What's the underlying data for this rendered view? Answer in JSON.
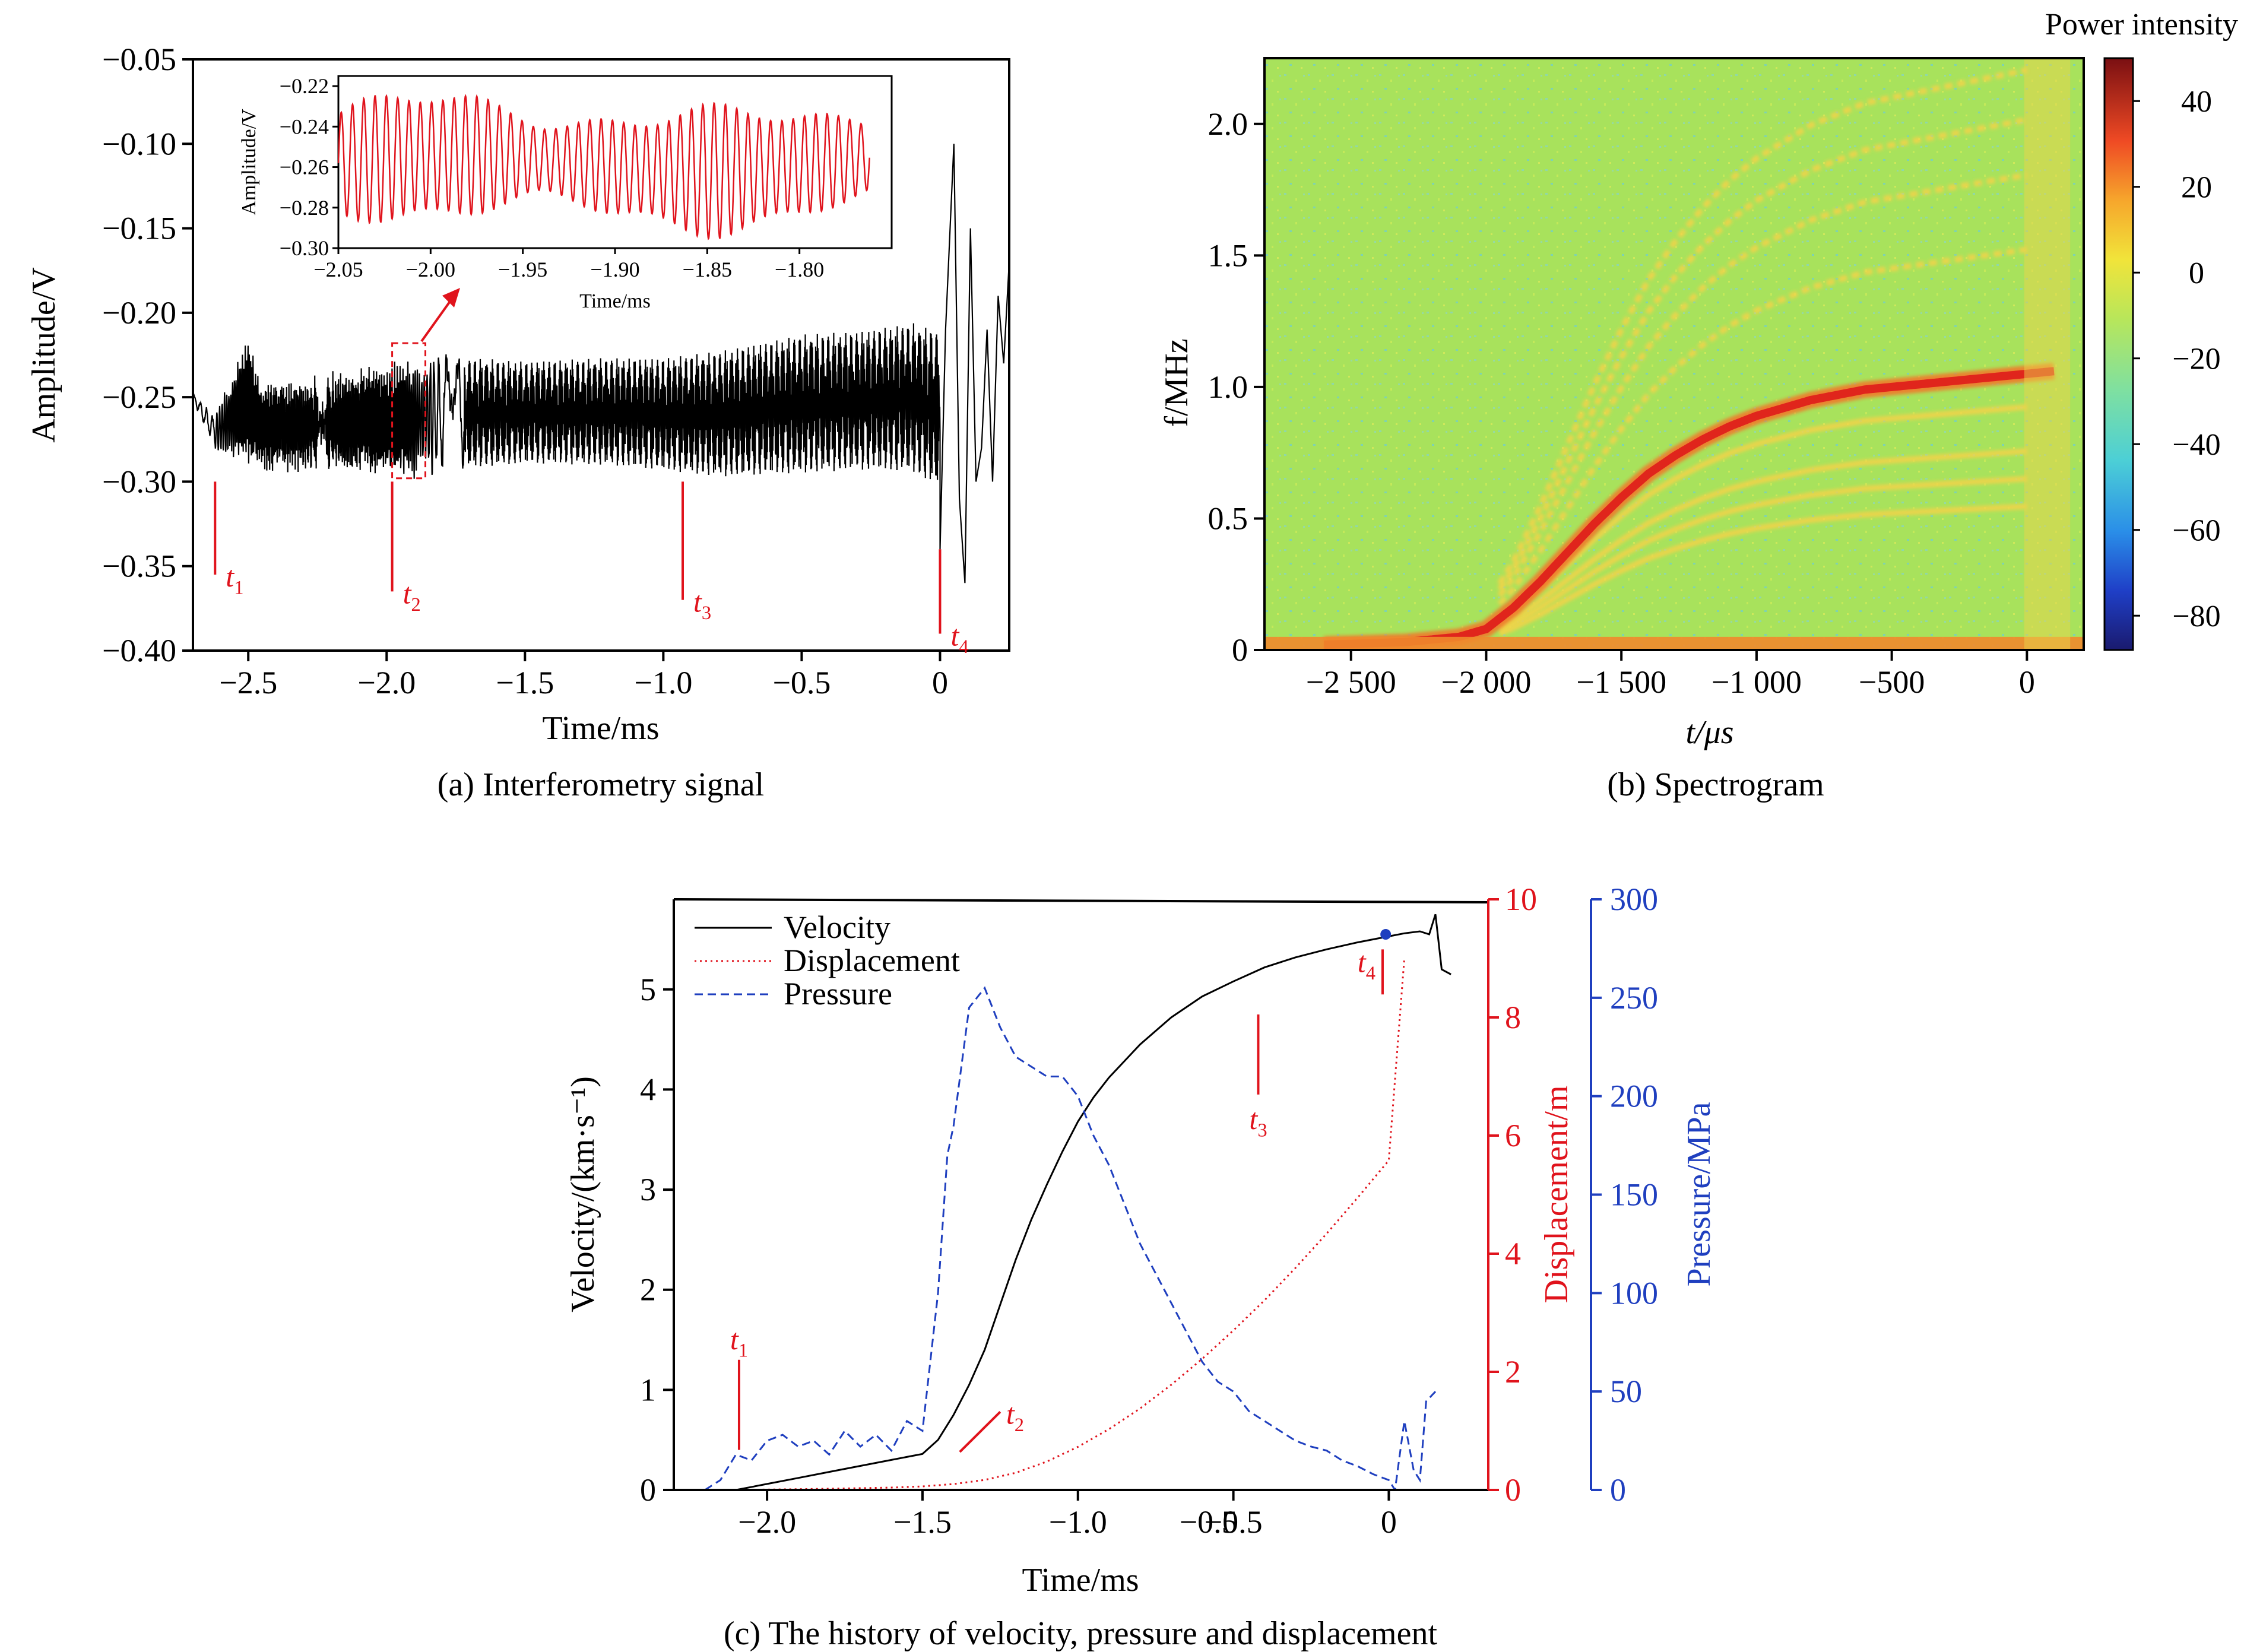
{
  "chart_data": [
    {
      "id": "a",
      "type": "line",
      "caption": "(a) Interferometry signal",
      "xlabel": "Time/ms",
      "ylabel": "Amplitude/V",
      "xlim": [
        -2.7,
        0.25
      ],
      "ylim": [
        -0.4,
        -0.05
      ],
      "xticks": [
        -2.5,
        -2.0,
        -1.5,
        -1.0,
        -0.5,
        0
      ],
      "xtick_labels": [
        "−2.5",
        "−2.0",
        "−1.5",
        "−1.0",
        "−0.5",
        "0"
      ],
      "yticks": [
        -0.4,
        -0.35,
        -0.3,
        -0.25,
        -0.2,
        -0.15,
        -0.1,
        -0.05
      ],
      "ytick_labels": [
        "−0.40",
        "−0.35",
        "−0.30",
        "−0.25",
        "−0.20",
        "−0.15",
        "−0.10",
        "−0.05"
      ],
      "series": [
        {
          "color": "#000000",
          "envelope": {
            "x": [
              -2.7,
              -2.62,
              -2.55,
              -2.5,
              -2.45,
              -2.3,
              -2.1,
              -2.0,
              -1.9,
              -1.8,
              -1.5,
              -1.2,
              -1.0,
              -0.8,
              -0.5,
              -0.3,
              -0.1,
              0.0
            ],
            "upper": [
              -0.248,
              -0.262,
              -0.235,
              -0.215,
              -0.245,
              -0.24,
              -0.235,
              -0.232,
              -0.23,
              -0.225,
              -0.228,
              -0.226,
              -0.226,
              -0.222,
              -0.212,
              -0.21,
              -0.205,
              -0.21
            ],
            "lower": [
              -0.252,
              -0.28,
              -0.285,
              -0.288,
              -0.292,
              -0.292,
              -0.295,
              -0.295,
              -0.296,
              -0.294,
              -0.29,
              -0.291,
              -0.294,
              -0.298,
              -0.296,
              -0.294,
              -0.295,
              -0.305
            ]
          },
          "tail": {
            "x": [
              0.0,
              0.02,
              0.05,
              0.07,
              0.09,
              0.11,
              0.13,
              0.15,
              0.17,
              0.19,
              0.21,
              0.23,
              0.25
            ],
            "y": [
              -0.34,
              -0.21,
              -0.1,
              -0.31,
              -0.36,
              -0.15,
              -0.3,
              -0.28,
              -0.21,
              -0.3,
              -0.19,
              -0.23,
              -0.17
            ]
          }
        }
      ],
      "markers": [
        {
          "label": "t",
          "sub": "1",
          "x": -2.62,
          "y_top": -0.3,
          "y_bottom": -0.355
        },
        {
          "label": "t",
          "sub": "2",
          "x": -1.98,
          "y_top": -0.3,
          "y_bottom": -0.365
        },
        {
          "label": "t",
          "sub": "3",
          "x": -0.93,
          "y_top": -0.3,
          "y_bottom": -0.37
        },
        {
          "label": "t",
          "sub": "4",
          "x": 0.0,
          "y_top": -0.34,
          "y_bottom": -0.39
        }
      ],
      "inset": {
        "xlabel": "Time/ms",
        "ylabel": "Amplitude/V",
        "xlim": [
          -2.05,
          -1.75
        ],
        "ylim": [
          -0.3,
          -0.215
        ],
        "xticks": [
          -2.05,
          -2.0,
          -1.95,
          -1.9,
          -1.85,
          -1.8
        ],
        "xtick_labels": [
          "−2.05",
          "−2.00",
          "−1.95",
          "−1.90",
          "−1.85",
          "−1.80"
        ],
        "yticks": [
          -0.3,
          -0.28,
          -0.26,
          -0.24,
          -0.22
        ],
        "ytick_labels": [
          "−0.30",
          "−0.28",
          "−0.26",
          "−0.24",
          "−0.22"
        ],
        "series_color": "#e0131c",
        "cycles": 47,
        "center": -0.258,
        "amplitude": 0.024,
        "zoom_box": {
          "x": [
            -1.98,
            -1.86
          ],
          "y": [
            -0.298,
            -0.218
          ]
        }
      }
    },
    {
      "id": "b",
      "type": "heatmap",
      "caption": "(b) Spectrogram",
      "xlabel": "t/μs",
      "ylabel": "f/MHz",
      "colorbar_title": "Power intensity",
      "xlim": [
        -2820,
        210
      ],
      "ylim": [
        0,
        2.25
      ],
      "xticks": [
        -2500,
        -2000,
        -1500,
        -1000,
        -500,
        0
      ],
      "xtick_labels": [
        "−2 500",
        "−2 000",
        "−1 500",
        "−1 000",
        "−500",
        "0"
      ],
      "yticks": [
        0,
        0.5,
        1.0,
        1.5,
        2.0
      ],
      "ytick_labels": [
        "0",
        "0.5",
        "1.0",
        "1.5",
        "2.0"
      ],
      "colorbar_range": [
        -88,
        50
      ],
      "colorbar_ticks": [
        40,
        20,
        0,
        -20,
        -40,
        -60,
        -80
      ],
      "colorbar_tick_labels": [
        "40",
        "20",
        "0",
        "−20",
        "−40",
        "−60",
        "−80"
      ],
      "background_color": "#a9e35a",
      "main_line": {
        "t": [
          -2600,
          -2300,
          -2100,
          -2000,
          -1900,
          -1800,
          -1700,
          -1600,
          -1500,
          -1400,
          -1300,
          -1200,
          -1100,
          -1000,
          -900,
          -800,
          -700,
          -600,
          -500,
          -400,
          -300,
          -200,
          -100,
          0,
          100
        ],
        "f": [
          0.02,
          0.03,
          0.05,
          0.08,
          0.16,
          0.26,
          0.37,
          0.48,
          0.58,
          0.67,
          0.74,
          0.8,
          0.85,
          0.89,
          0.92,
          0.95,
          0.97,
          0.99,
          1.0,
          1.01,
          1.02,
          1.03,
          1.04,
          1.05,
          1.06
        ]
      },
      "harmonic_scales": [
        0.88,
        0.72,
        0.62,
        0.52,
        1.45,
        1.72,
        1.92,
        2.1
      ],
      "baseline_f": 0.05
    },
    {
      "id": "c",
      "type": "line",
      "caption": "(c) The history of velocity, pressure and displacement",
      "xlabel": "Time/ms",
      "ylabel": "Velocity/(km·s⁻¹)",
      "y2label": "Displacement/m",
      "y3label": "Pressure/MPa",
      "xlim": [
        -2.3,
        0.32
      ],
      "ylim": [
        0,
        5.9
      ],
      "y2lim": [
        0,
        10
      ],
      "y3lim": [
        0,
        300
      ],
      "xticks": [
        -2.0,
        -1.5,
        -1.0,
        -0.5,
        0
      ],
      "xtick_labels": [
        "−2.0",
        "−1.5",
        "−1.0",
        "−0.5",
        "0"
      ],
      "xticks_extra": [
        {
          "x": -0.5,
          "label": "−0.5",
          "at": -0.58
        }
      ],
      "yticks": [
        0,
        1,
        2,
        3,
        4,
        5
      ],
      "y2ticks": [
        0,
        2,
        4,
        6,
        8,
        10
      ],
      "y3ticks": [
        0,
        50,
        100,
        150,
        200,
        250,
        300
      ],
      "legend": [
        "Velocity",
        "Displacement",
        "Pressure"
      ],
      "legend_position": "top-left",
      "series": [
        {
          "name": "Velocity",
          "color": "#000000",
          "style": "solid",
          "axis": "y",
          "x": [
            -2.1,
            -2.0,
            -1.9,
            -1.8,
            -1.7,
            -1.6,
            -1.5,
            -1.45,
            -1.4,
            -1.35,
            -1.3,
            -1.25,
            -1.2,
            -1.15,
            -1.1,
            -1.05,
            -1.0,
            -0.95,
            -0.9,
            -0.8,
            -0.7,
            -0.6,
            -0.5,
            -0.4,
            -0.3,
            -0.2,
            -0.1,
            0.0,
            0.05,
            0.1,
            0.13,
            0.15,
            0.17,
            0.2
          ],
          "y": [
            0.0,
            0.06,
            0.12,
            0.18,
            0.24,
            0.3,
            0.36,
            0.5,
            0.75,
            1.05,
            1.4,
            1.85,
            2.3,
            2.7,
            3.05,
            3.38,
            3.68,
            3.92,
            4.12,
            4.45,
            4.72,
            4.93,
            5.08,
            5.22,
            5.32,
            5.4,
            5.47,
            5.53,
            5.56,
            5.58,
            5.55,
            5.75,
            5.2,
            5.15
          ]
        },
        {
          "name": "Displacement",
          "color": "#e0131c",
          "style": "dotted",
          "axis": "y2",
          "x": [
            -2.1,
            -1.8,
            -1.6,
            -1.5,
            -1.4,
            -1.3,
            -1.2,
            -1.1,
            -1.0,
            -0.9,
            -0.8,
            -0.7,
            -0.6,
            -0.5,
            -0.4,
            -0.3,
            -0.2,
            -0.1,
            0.0,
            0.05
          ],
          "y": [
            0.0,
            0.02,
            0.04,
            0.06,
            0.1,
            0.17,
            0.29,
            0.48,
            0.73,
            1.03,
            1.38,
            1.78,
            2.22,
            2.7,
            3.21,
            3.76,
            4.34,
            4.95,
            5.58,
            9.0
          ]
        },
        {
          "name": "Pressure",
          "color": "#1f3fbf",
          "style": "dashed",
          "axis": "y3",
          "x": [
            -2.2,
            -2.15,
            -2.1,
            -2.05,
            -2.0,
            -1.95,
            -1.9,
            -1.85,
            -1.8,
            -1.75,
            -1.7,
            -1.65,
            -1.6,
            -1.55,
            -1.5,
            -1.45,
            -1.42,
            -1.4,
            -1.35,
            -1.3,
            -1.25,
            -1.2,
            -1.15,
            -1.1,
            -1.05,
            -1.0,
            -0.95,
            -0.9,
            -0.85,
            -0.8,
            -0.75,
            -0.7,
            -0.65,
            -0.6,
            -0.55,
            -0.5,
            -0.45,
            -0.4,
            -0.35,
            -0.3,
            -0.25,
            -0.2,
            -0.15,
            -0.1,
            -0.05,
            0.0,
            0.02,
            0.05,
            0.08,
            0.1,
            0.12,
            0.15
          ],
          "y": [
            0,
            5,
            18,
            15,
            25,
            28,
            22,
            25,
            18,
            30,
            22,
            28,
            20,
            35,
            30,
            100,
            170,
            185,
            245,
            255,
            235,
            220,
            215,
            210,
            210,
            200,
            180,
            165,
            145,
            125,
            110,
            95,
            80,
            65,
            55,
            50,
            40,
            35,
            30,
            25,
            22,
            20,
            15,
            12,
            8,
            5,
            0,
            35,
            10,
            5,
            45,
            50
          ]
        }
      ],
      "markers": [
        {
          "label": "t",
          "sub": "1",
          "x": -2.09,
          "y_top": 1.3,
          "y_bottom": 0.4
        },
        {
          "label": "t",
          "sub": "2",
          "x1": -1.38,
          "y1": 0.38,
          "x2": -1.25,
          "y2": 0.78
        },
        {
          "label": "t",
          "sub": "3",
          "x": -0.42,
          "y_top": 4.75,
          "y_bottom": 3.95
        },
        {
          "label": "t",
          "sub": "4",
          "x": -0.02,
          "y_top": 5.4,
          "y_bottom": 4.95
        }
      ],
      "dot": {
        "x": -0.01,
        "y": 5.55,
        "color": "#1f3fbf"
      }
    }
  ]
}
